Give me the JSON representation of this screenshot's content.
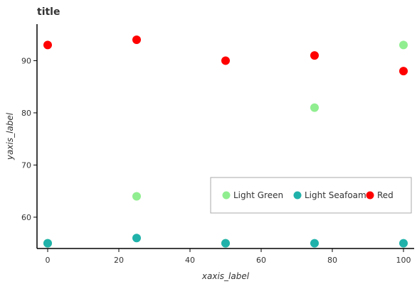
{
  "chart_data": {
    "type": "scatter",
    "title": "title",
    "xlabel": "xaxis_label",
    "ylabel": "yaxis_label",
    "xlim": [
      -3,
      103
    ],
    "ylim": [
      54,
      97
    ],
    "xticks": [
      0,
      20,
      40,
      60,
      80,
      100
    ],
    "yticks": [
      60,
      70,
      80,
      90
    ],
    "grid": false,
    "legend_position": "right",
    "series": [
      {
        "name": "Light Green",
        "color": "#90EE90",
        "x": [
          0,
          25,
          50,
          75,
          100
        ],
        "y": [
          55,
          64,
          55,
          81,
          93
        ]
      },
      {
        "name": "Light Seafoam",
        "color": "#20B2AA",
        "x": [
          0,
          25,
          50,
          75,
          100
        ],
        "y": [
          55,
          56,
          55,
          55,
          55
        ]
      },
      {
        "name": "Red",
        "color": "#FF0000",
        "x": [
          0,
          25,
          50,
          75,
          100
        ],
        "y": [
          93,
          94,
          90,
          91,
          88
        ]
      }
    ],
    "legend_order": [
      "Light Green",
      "Light Seafoam",
      "Red"
    ]
  }
}
